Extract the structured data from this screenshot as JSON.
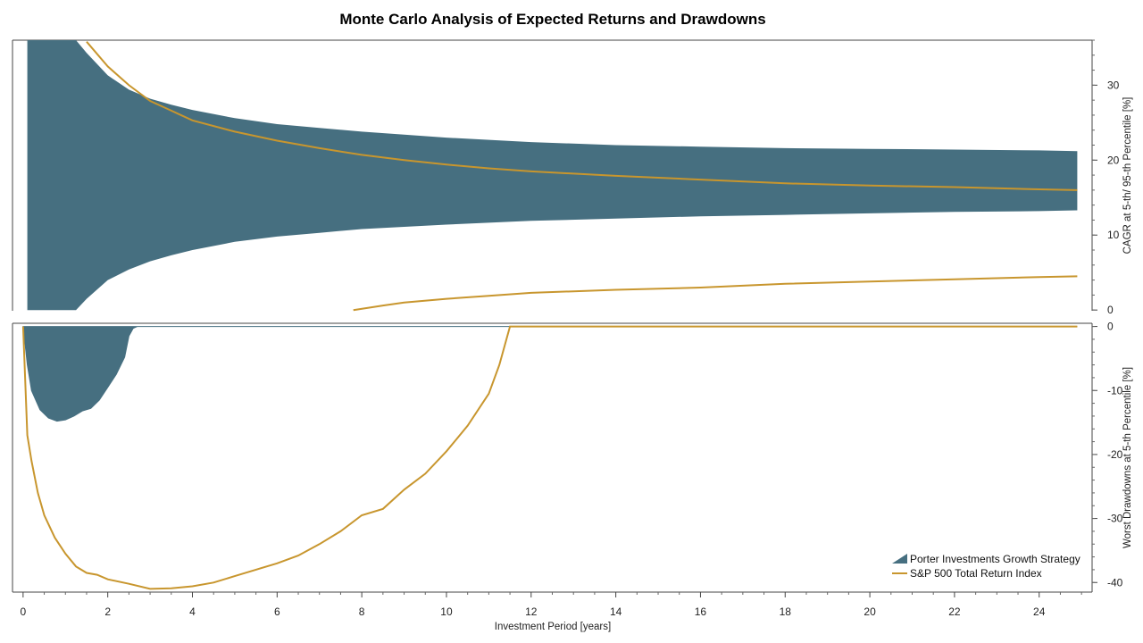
{
  "chart_data": {
    "title": "Monte Carlo Analysis of Expected Returns and Drawdowns",
    "colors": {
      "strategy": "#466f80",
      "benchmark": "#c8962e"
    },
    "legend": {
      "placement": "bottom-right",
      "entries": [
        "Porter Investments Growth Strategy",
        "S&P 500 Total Return Index"
      ]
    },
    "xaxis": {
      "label": "Investment Period [years]",
      "range": [
        -0.25,
        25.25
      ],
      "ticks": [
        0,
        2,
        4,
        6,
        8,
        10,
        12,
        14,
        16,
        18,
        20,
        22,
        24
      ]
    },
    "panels": [
      {
        "id": "returns",
        "type": "area",
        "ylabel": "CAGR at 5-th/ 95-th Percentile [%]",
        "yrange": [
          -0.1,
          36
        ],
        "yticks": [
          0,
          10,
          20,
          30
        ],
        "series": [
          {
            "name": "Porter Investments Growth Strategy",
            "kind": "band",
            "x": [
              0.1,
              0.5,
              1.0,
              1.25,
              1.5,
              2.0,
              2.5,
              3.0,
              3.5,
              4.0,
              5.0,
              6.0,
              7.0,
              8.0,
              9.0,
              10.0,
              12.0,
              14.0,
              16.0,
              18.0,
              20.0,
              22.0,
              24.0,
              24.9
            ],
            "upper": [
              36,
              36,
              36,
              36,
              34.3,
              31.3,
              29.4,
              28.2,
              27.4,
              26.7,
              25.6,
              24.8,
              24.3,
              23.8,
              23.4,
              23.0,
              22.4,
              22.0,
              21.8,
              21.6,
              21.5,
              21.4,
              21.3,
              21.2
            ],
            "lower": [
              0,
              0,
              0,
              0,
              1.5,
              4.0,
              5.4,
              6.5,
              7.3,
              8.0,
              9.1,
              9.8,
              10.3,
              10.8,
              11.1,
              11.4,
              11.9,
              12.2,
              12.5,
              12.7,
              12.9,
              13.1,
              13.2,
              13.3
            ]
          },
          {
            "name": "S&P 500 Total Return Index",
            "kind": "upper",
            "x": [
              1.5,
              2.0,
              2.5,
              3.0,
              3.5,
              4.0,
              5.0,
              6.0,
              7.0,
              8.0,
              9.0,
              10.0,
              11.0,
              12.0,
              14.0,
              16.0,
              18.0,
              20.0,
              22.0,
              24.0,
              24.9
            ],
            "values": [
              35.8,
              32.5,
              30.0,
              27.9,
              26.6,
              25.3,
              23.8,
              22.6,
              21.6,
              20.7,
              20.0,
              19.4,
              18.9,
              18.5,
              17.9,
              17.4,
              16.9,
              16.6,
              16.4,
              16.1,
              16.0
            ]
          },
          {
            "name": "S&P 500 Total Return Index",
            "kind": "lower",
            "x": [
              7.8,
              8.5,
              9.0,
              10.0,
              11.0,
              12.0,
              13.0,
              14.0,
              16.0,
              18.0,
              20.0,
              22.0,
              24.0,
              24.9
            ],
            "values": [
              0.0,
              0.6,
              1.0,
              1.5,
              1.9,
              2.3,
              2.5,
              2.7,
              3.0,
              3.5,
              3.8,
              4.1,
              4.4,
              4.5
            ]
          }
        ]
      },
      {
        "id": "drawdowns",
        "type": "area",
        "ylabel": "Worst Drawdowns at 5-th Percentile [%]",
        "yrange": [
          -41.5,
          0.5
        ],
        "yticks": [
          0,
          -10,
          -20,
          -30,
          -40
        ],
        "series": [
          {
            "name": "Porter Investments Growth Strategy",
            "kind": "area",
            "x": [
              0.0,
              0.1,
              0.2,
              0.4,
              0.6,
              0.8,
              1.0,
              1.2,
              1.4,
              1.6,
              1.8,
              2.0,
              2.2,
              2.4,
              2.5,
              2.6,
              2.7,
              24.9
            ],
            "values": [
              0,
              -6,
              -10,
              -13,
              -14.3,
              -14.8,
              -14.6,
              -14.0,
              -13.2,
              -12.8,
              -11.5,
              -9.5,
              -7.5,
              -4.8,
              -1.5,
              -0.3,
              0,
              0
            ]
          },
          {
            "name": "S&P 500 Total Return Index",
            "kind": "line",
            "x": [
              0.0,
              0.1,
              0.2,
              0.35,
              0.5,
              0.75,
              1.0,
              1.25,
              1.5,
              1.75,
              2.0,
              2.5,
              3.0,
              3.5,
              4.0,
              4.5,
              5.0,
              5.5,
              6.0,
              6.5,
              7.0,
              7.5,
              8.0,
              8.5,
              9.0,
              9.5,
              10.0,
              10.5,
              11.0,
              11.25,
              11.5,
              12.0,
              14.0,
              16.0,
              18.0,
              20.0,
              22.0,
              24.0,
              24.9
            ],
            "values": [
              0,
              -17,
              -21,
              -26,
              -29.5,
              -33,
              -35.5,
              -37.5,
              -38.5,
              -38.8,
              -39.5,
              -40.2,
              -41.0,
              -40.9,
              -40.6,
              -40.0,
              -39.0,
              -38.0,
              -37.0,
              -35.8,
              -34.0,
              -32.0,
              -29.5,
              -28.5,
              -25.5,
              -23.0,
              -19.5,
              -15.5,
              -10.5,
              -6.0,
              0,
              0,
              0,
              0,
              0,
              0,
              0,
              0,
              0
            ]
          }
        ]
      }
    ]
  }
}
